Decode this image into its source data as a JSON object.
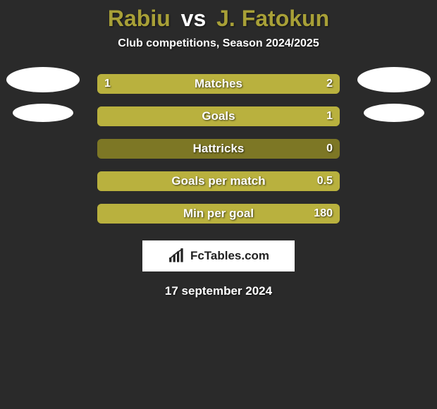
{
  "title": {
    "player1": "Rabiu",
    "vs": "vs",
    "player2": "J. Fatokun",
    "fontsize": 32,
    "color_p1": "#a8a037",
    "color_vs": "#ffffff",
    "color_p2": "#a8a037"
  },
  "subtitle": {
    "text": "Club competitions, Season 2024/2025",
    "fontsize": 16
  },
  "avatars": {
    "player_bg": "#ffffff",
    "team_bg": "#ffffff"
  },
  "bars": {
    "track_color": "#7d7725",
    "fill_p1": "#b9b13e",
    "fill_p2": "#b9b13e",
    "height": 28,
    "border_radius": 6,
    "label_fontsize": 17,
    "value_fontsize": 16,
    "items": [
      {
        "label": "Matches",
        "v1": "1",
        "v2": "2",
        "p1_pct": 33,
        "p2_pct": 67
      },
      {
        "label": "Goals",
        "v1": "",
        "v2": "1",
        "p1_pct": 0,
        "p2_pct": 100
      },
      {
        "label": "Hattricks",
        "v1": "",
        "v2": "0",
        "p1_pct": 0,
        "p2_pct": 0
      },
      {
        "label": "Goals per match",
        "v1": "",
        "v2": "0.5",
        "p1_pct": 0,
        "p2_pct": 100
      },
      {
        "label": "Min per goal",
        "v1": "",
        "v2": "180",
        "p1_pct": 0,
        "p2_pct": 100
      }
    ]
  },
  "brand": {
    "text": "FcTables.com",
    "fontsize": 17,
    "bg": "#ffffff",
    "color": "#222222"
  },
  "date": {
    "text": "17 september 2024",
    "fontsize": 17
  },
  "background_color": "#2a2a2a"
}
